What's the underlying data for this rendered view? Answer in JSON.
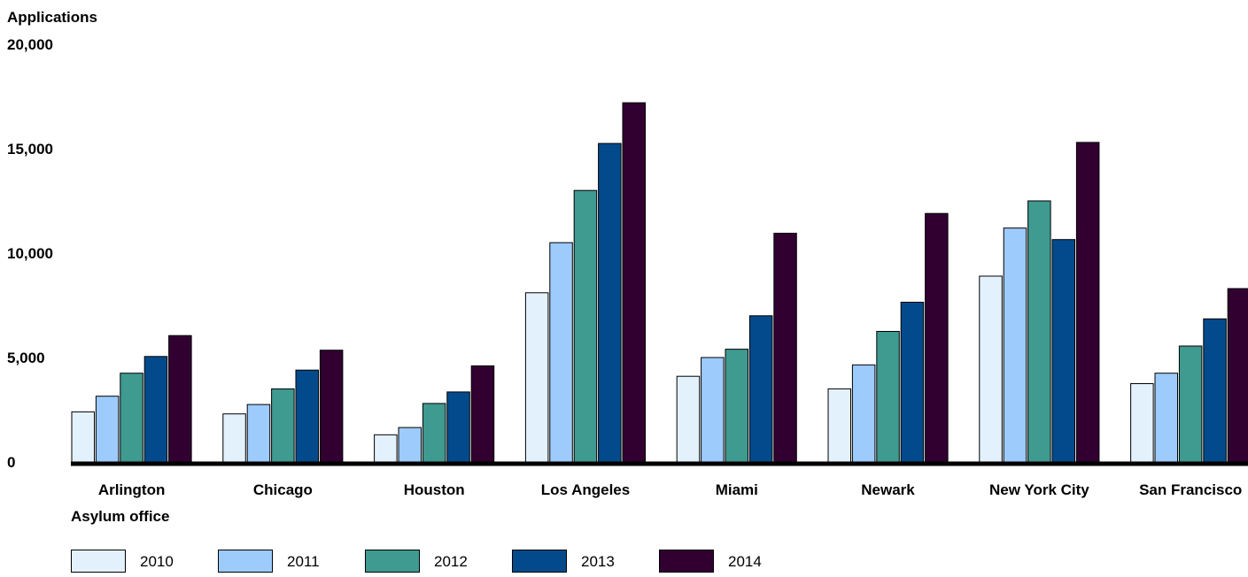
{
  "chart_data": {
    "type": "bar",
    "ylabel": "Applications",
    "xlabel": "Asylum office",
    "ylim": [
      0,
      20000
    ],
    "yticks": [
      0,
      5000,
      10000,
      15000,
      20000
    ],
    "ytick_labels": [
      "0",
      "5,000",
      "10,000",
      "15,000",
      "20,000"
    ],
    "grid": false,
    "legend_position": "bottom-left",
    "categories": [
      "Arlington",
      "Chicago",
      "Houston",
      "Los Angeles",
      "Miami",
      "Newark",
      "New York City",
      "San Francisco"
    ],
    "series": [
      {
        "name": "2010",
        "color": "#e3f1fd",
        "values": [
          2400,
          2300,
          1300,
          8100,
          4100,
          3500,
          8900,
          3750
        ]
      },
      {
        "name": "2011",
        "color": "#9dcbfb",
        "values": [
          3150,
          2750,
          1650,
          10500,
          5000,
          4650,
          11200,
          4250
        ]
      },
      {
        "name": "2012",
        "color": "#3f9a90",
        "values": [
          4250,
          3500,
          2800,
          13000,
          5400,
          6250,
          12500,
          5550
        ]
      },
      {
        "name": "2013",
        "color": "#024a8b",
        "values": [
          5050,
          4400,
          3350,
          15250,
          7000,
          7650,
          10650,
          6850
        ]
      },
      {
        "name": "2014",
        "color": "#310031",
        "values": [
          6050,
          5350,
          4600,
          17200,
          10950,
          11900,
          15300,
          8300
        ]
      }
    ]
  }
}
